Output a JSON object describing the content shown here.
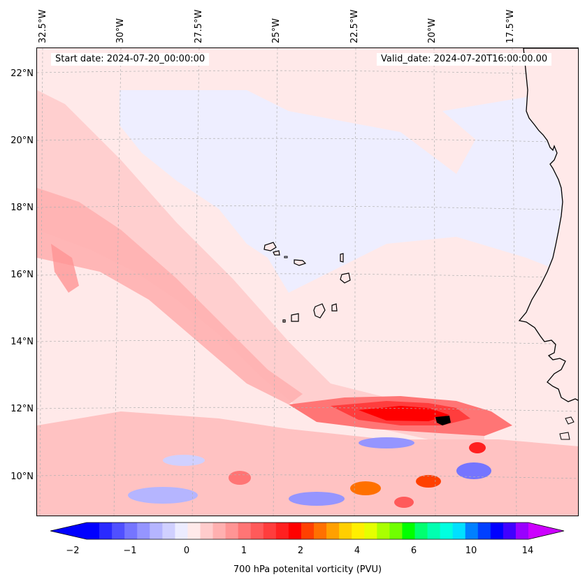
{
  "header": {
    "start_date": "Start date: 2024-07-20_00:00:00",
    "valid_date": "Valid_date: 2024-07-20T16:00:00.00"
  },
  "longitude_labels": [
    "32.5°W",
    "30°W",
    "27.5°W",
    "25°W",
    "22.5°W",
    "20°W",
    "17.5°W"
  ],
  "latitude_labels": [
    "22°N",
    "20°N",
    "18°N",
    "16°N",
    "14°N",
    "12°N",
    "10°N"
  ],
  "colorbar": {
    "label": "700 hPa potenital vorticity (PVU)",
    "ticks": [
      "−2",
      "−1",
      "0",
      "1",
      "2",
      "4",
      "6",
      "10",
      "14"
    ],
    "colors": [
      "#0000ff",
      "#2a2aff",
      "#5050ff",
      "#7575ff",
      "#9595ff",
      "#b5b5ff",
      "#d0d0ff",
      "#ececff",
      "#ffeaea",
      "#ffcccc",
      "#ffb0b0",
      "#ff9595",
      "#ff7575",
      "#ff5a5a",
      "#ff3d3d",
      "#ff2020",
      "#ff0000",
      "#ff4000",
      "#ff7000",
      "#ffa000",
      "#ffcf00",
      "#ffef00",
      "#e5ff00",
      "#aaff00",
      "#70ff00",
      "#00ff00",
      "#00ff70",
      "#00ffb0",
      "#00ffe0",
      "#00e0ff",
      "#0080ff",
      "#0040ff",
      "#0000ff",
      "#4000ff",
      "#9900ff"
    ],
    "under_color": "#0000ff",
    "over_color": "#cc00ff"
  },
  "map": {
    "background_color": "#ffe9e9",
    "coastline_color": "#000000",
    "gridline_color": "#b0b0b0"
  }
}
